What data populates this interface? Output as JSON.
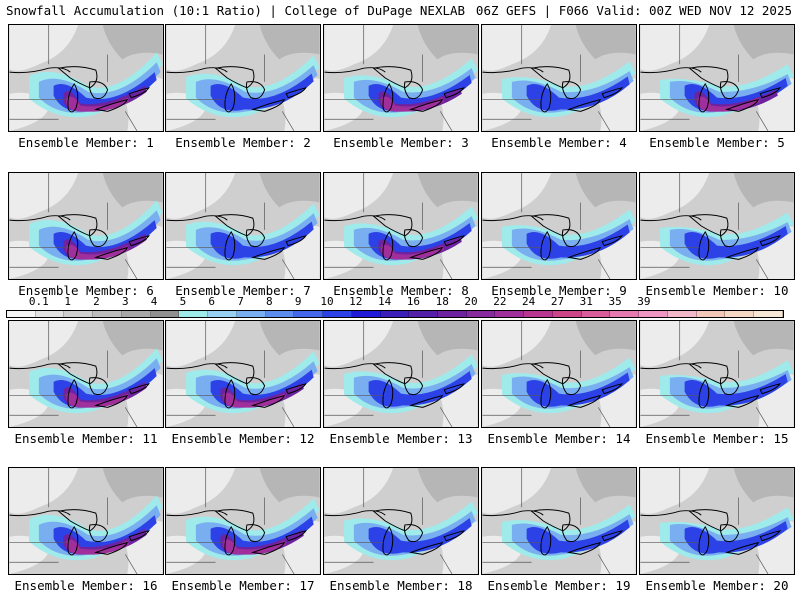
{
  "header": {
    "left": "Snowfall Accumulation (10:1 Ratio) | College of DuPage NEXLAB",
    "right": "06Z GEFS | F066 Valid: 00Z WED NOV 12 2025"
  },
  "panels": [
    {
      "caption": "Ensemble Member: 1"
    },
    {
      "caption": "Ensemble Member: 2"
    },
    {
      "caption": "Ensemble Member: 3"
    },
    {
      "caption": "Ensemble Member: 4"
    },
    {
      "caption": "Ensemble Member: 5"
    },
    {
      "caption": "Ensemble Member: 6"
    },
    {
      "caption": "Ensemble Member: 7"
    },
    {
      "caption": "Ensemble Member: 8"
    },
    {
      "caption": "Ensemble Member: 9"
    },
    {
      "caption": "Ensemble Member: 10"
    },
    {
      "caption": "Ensemble Member: 11"
    },
    {
      "caption": "Ensemble Member: 12"
    },
    {
      "caption": "Ensemble Member: 13"
    },
    {
      "caption": "Ensemble Member: 14"
    },
    {
      "caption": "Ensemble Member: 15"
    },
    {
      "caption": "Ensemble Member: 16"
    },
    {
      "caption": "Ensemble Member: 17"
    },
    {
      "caption": "Ensemble Member: 18"
    },
    {
      "caption": "Ensemble Member: 19"
    },
    {
      "caption": "Ensemble Member: 20"
    }
  ],
  "colorbar": {
    "labels": [
      "0.1",
      "1",
      "2",
      "3",
      "4",
      "5",
      "6",
      "7",
      "8",
      "9",
      "10",
      "12",
      "14",
      "16",
      "18",
      "20",
      "22",
      "24",
      "27",
      "31",
      "35",
      "39"
    ],
    "colors": [
      "#f4f4f4",
      "#e2e2e2",
      "#cfcfcf",
      "#bdbdbd",
      "#a8a8a8",
      "#909090",
      "#9feaea",
      "#98d0f2",
      "#79aef0",
      "#5b8cee",
      "#4467ec",
      "#2d42e6",
      "#1f1bd8",
      "#3b1fb8",
      "#5520a8",
      "#6d22a0",
      "#862a9e",
      "#a02f9c",
      "#b8368f",
      "#cc4588",
      "#d95c9b",
      "#e679b0",
      "#ef97c4",
      "#f2b7c9",
      "#f3c8b9",
      "#f5d9c4",
      "#f7e7d6"
    ]
  },
  "map": {
    "colors": {
      "background": "#cfcfcf",
      "land_light": "#ececec",
      "land_mid": "#b6b6b6",
      "land_dark": "#9a9a9a",
      "cyan": "#9feaea",
      "light_blue": "#79aef0",
      "blue": "#2d42e6",
      "purple": "#6d22a0",
      "magenta": "#a02f9c",
      "lines": "#000000"
    }
  }
}
